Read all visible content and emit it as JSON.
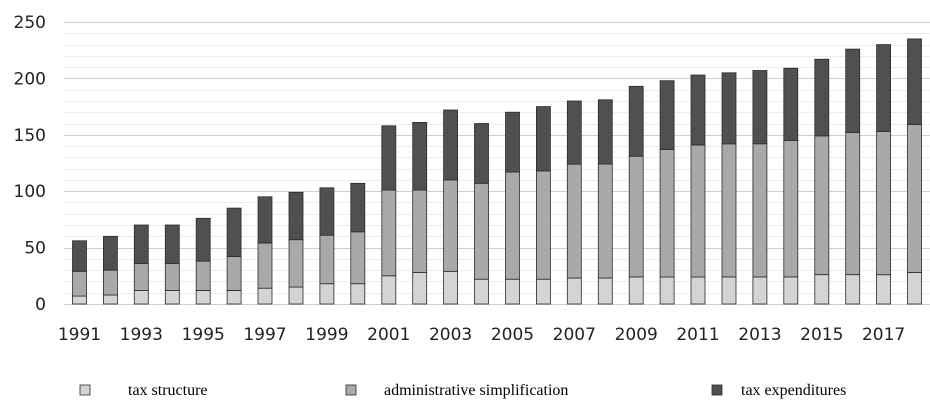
{
  "chart_data": {
    "type": "bar",
    "stacked": true,
    "x": [
      1991,
      1992,
      1993,
      1994,
      1995,
      1996,
      1997,
      1998,
      1999,
      2000,
      2001,
      2002,
      2003,
      2004,
      2005,
      2006,
      2007,
      2008,
      2009,
      2010,
      2011,
      2012,
      2013,
      2014,
      2015,
      2016,
      2017,
      2018
    ],
    "x_tick_labels": [
      "1991",
      "1993",
      "1995",
      "1997",
      "1999",
      "2001",
      "2003",
      "2005",
      "2007",
      "2009",
      "2011",
      "2013",
      "2015",
      "2017"
    ],
    "y_tick_labels": [
      "0",
      "50",
      "100",
      "150",
      "200",
      "250"
    ],
    "ylim": [
      0,
      250
    ],
    "y_major_step": 50,
    "y_minor_step": 10,
    "grid": true,
    "legend_position": "bottom",
    "series": [
      {
        "name": "tax structure",
        "color": "#d4d4d4",
        "values": [
          7,
          8,
          12,
          12,
          12,
          12,
          14,
          15,
          18,
          18,
          25,
          28,
          29,
          22,
          22,
          22,
          23,
          23,
          24,
          24,
          24,
          24,
          24,
          24,
          26,
          26,
          26,
          28
        ]
      },
      {
        "name": "administrative simplification",
        "color": "#a9a9a9",
        "values": [
          22,
          22,
          24,
          24,
          26,
          30,
          40,
          42,
          43,
          46,
          76,
          73,
          81,
          85,
          95,
          96,
          101,
          101,
          107,
          113,
          117,
          118,
          118,
          121,
          123,
          126,
          127,
          131
        ]
      },
      {
        "name": "tax expenditures",
        "color": "#505050",
        "values": [
          27,
          30,
          34,
          34,
          38,
          43,
          41,
          42,
          42,
          43,
          57,
          60,
          62,
          53,
          53,
          57,
          56,
          57,
          62,
          61,
          62,
          63,
          65,
          64,
          68,
          74,
          77,
          76
        ]
      }
    ]
  }
}
